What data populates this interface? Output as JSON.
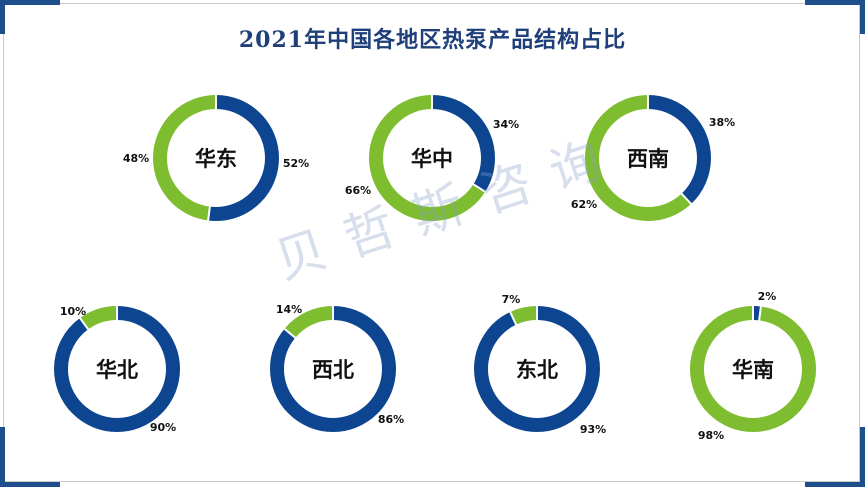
{
  "title": "2021年中国各地区热泵产品结构占比",
  "watermark": "贝哲斯咨询",
  "colors": {
    "primary": "#0d4591",
    "secondary": "#7dbd2f",
    "frame_accent": "#1f4e8c"
  },
  "chart_data": [
    {
      "type": "pie",
      "center_label": "华东",
      "categories": [
        "",
        ""
      ],
      "values": [
        52,
        48
      ],
      "labels": [
        "52%",
        "48%"
      ]
    },
    {
      "type": "pie",
      "center_label": "华中",
      "categories": [
        "",
        ""
      ],
      "values": [
        34,
        66
      ],
      "labels": [
        "34%",
        "66%"
      ]
    },
    {
      "type": "pie",
      "center_label": "西南",
      "categories": [
        "",
        ""
      ],
      "values": [
        38,
        62
      ],
      "labels": [
        "38%",
        "62%"
      ]
    },
    {
      "type": "pie",
      "center_label": "华北",
      "categories": [
        "",
        ""
      ],
      "values": [
        90,
        10
      ],
      "labels": [
        "90%",
        "10%"
      ]
    },
    {
      "type": "pie",
      "center_label": "西北",
      "categories": [
        "",
        ""
      ],
      "values": [
        86,
        14
      ],
      "labels": [
        "86%",
        "14%"
      ]
    },
    {
      "type": "pie",
      "center_label": "东北",
      "categories": [
        "",
        ""
      ],
      "values": [
        93,
        7
      ],
      "labels": [
        "93%",
        "7%"
      ]
    },
    {
      "type": "pie",
      "center_label": "华南",
      "categories": [
        "",
        ""
      ],
      "values": [
        2,
        98
      ],
      "labels": [
        "2%",
        "98%"
      ]
    }
  ]
}
